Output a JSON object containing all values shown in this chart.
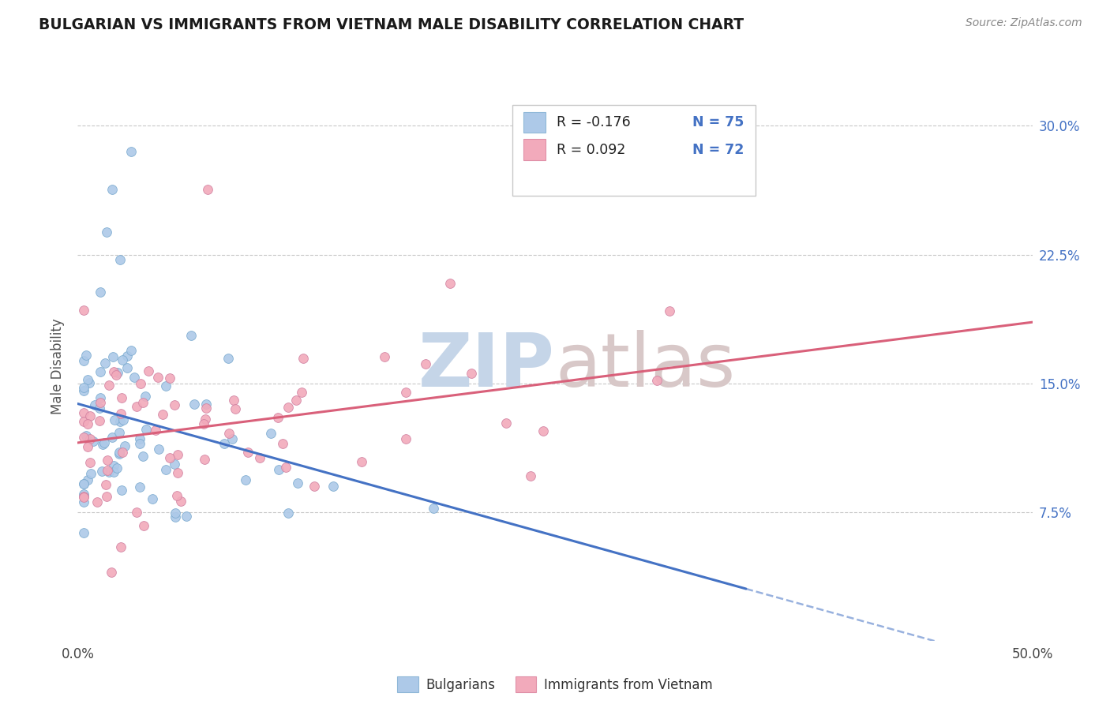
{
  "title": "BULGARIAN VS IMMIGRANTS FROM VIETNAM MALE DISABILITY CORRELATION CHART",
  "source": "Source: ZipAtlas.com",
  "ylabel": "Male Disability",
  "xlim": [
    0.0,
    0.5
  ],
  "ylim": [
    0.0,
    0.32
  ],
  "yticks": [
    0.075,
    0.15,
    0.225,
    0.3
  ],
  "ytick_labels": [
    "7.5%",
    "15.0%",
    "22.5%",
    "30.0%"
  ],
  "blue_color": "#adc9e8",
  "pink_color": "#f2aabb",
  "blue_line_color": "#4472c4",
  "pink_line_color": "#d9607a",
  "label_color": "#4472c4",
  "bg_color": "#ffffff",
  "grid_color": "#c8c8c8",
  "watermark_color": "#dde5f0",
  "title_color": "#1a1a1a",
  "source_color": "#888888"
}
